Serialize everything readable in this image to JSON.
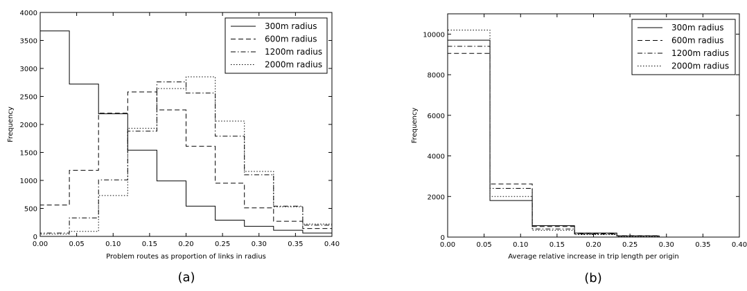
{
  "chart_data": [
    {
      "type": "histogram-step",
      "panel_label": "(a)",
      "xlabel": "Problem routes as proportion of links in radius",
      "ylabel": "Frequency",
      "xlim": [
        0.0,
        0.4
      ],
      "ylim": [
        0,
        4000
      ],
      "xticks": [
        "0.00",
        "0.05",
        "0.10",
        "0.15",
        "0.20",
        "0.25",
        "0.30",
        "0.35",
        "0.40"
      ],
      "xtick_values": [
        0.0,
        0.05,
        0.1,
        0.15,
        0.2,
        0.25,
        0.3,
        0.35,
        0.4
      ],
      "yticks": [
        "0",
        "500",
        "1000",
        "1500",
        "2000",
        "2500",
        "3000",
        "3500",
        "4000"
      ],
      "ytick_values": [
        0,
        500,
        1000,
        1500,
        2000,
        2500,
        3000,
        3500,
        4000
      ],
      "bin_edges": [
        0.0,
        0.04,
        0.08,
        0.12,
        0.16,
        0.2,
        0.24,
        0.28,
        0.32,
        0.36,
        0.4
      ],
      "legend_position": "top-right",
      "grid": false,
      "series": [
        {
          "name": "300m radius",
          "dash": "solid",
          "values": [
            3670,
            2720,
            2190,
            1540,
            990,
            540,
            290,
            180,
            110,
            60
          ]
        },
        {
          "name": "600m radius",
          "dash": "dashed",
          "values": [
            560,
            1180,
            2200,
            2580,
            2260,
            1610,
            950,
            510,
            270,
            140
          ]
        },
        {
          "name": "1200m radius",
          "dash": "dashdot",
          "values": [
            60,
            330,
            1010,
            1880,
            2760,
            2560,
            1790,
            1100,
            540,
            200
          ]
        },
        {
          "name": "2000m radius",
          "dash": "dotted",
          "values": [
            40,
            90,
            730,
            1930,
            2640,
            2850,
            2060,
            1160,
            530,
            220
          ]
        }
      ]
    },
    {
      "type": "histogram-step",
      "panel_label": "(b)",
      "xlabel": "Average relative increase in trip length per origin",
      "ylabel": "Frequency",
      "xlim": [
        0.0,
        0.4
      ],
      "ylim": [
        0,
        11000
      ],
      "xticks": [
        "0.00",
        "0.05",
        "0.10",
        "0.15",
        "0.20",
        "0.25",
        "0.30",
        "0.35",
        "0.40"
      ],
      "xtick_values": [
        0.0,
        0.05,
        0.1,
        0.15,
        0.2,
        0.25,
        0.3,
        0.35,
        0.4
      ],
      "yticks": [
        "0",
        "2000",
        "4000",
        "6000",
        "8000",
        "10000"
      ],
      "ytick_values": [
        0,
        2000,
        4000,
        6000,
        8000,
        10000
      ],
      "bin_edges": [
        0.0,
        0.058,
        0.116,
        0.174,
        0.232,
        0.29
      ],
      "legend_position": "top-right",
      "grid": false,
      "series": [
        {
          "name": "300m radius",
          "dash": "solid",
          "values": [
            9700,
            1800,
            560,
            200,
            60
          ]
        },
        {
          "name": "600m radius",
          "dash": "dashed",
          "values": [
            9050,
            2620,
            520,
            170,
            70
          ]
        },
        {
          "name": "1200m radius",
          "dash": "dashdot",
          "values": [
            9400,
            2400,
            400,
            150,
            50
          ]
        },
        {
          "name": "2000m radius",
          "dash": "dotted",
          "values": [
            10200,
            2000,
            330,
            120,
            40
          ]
        }
      ]
    }
  ]
}
